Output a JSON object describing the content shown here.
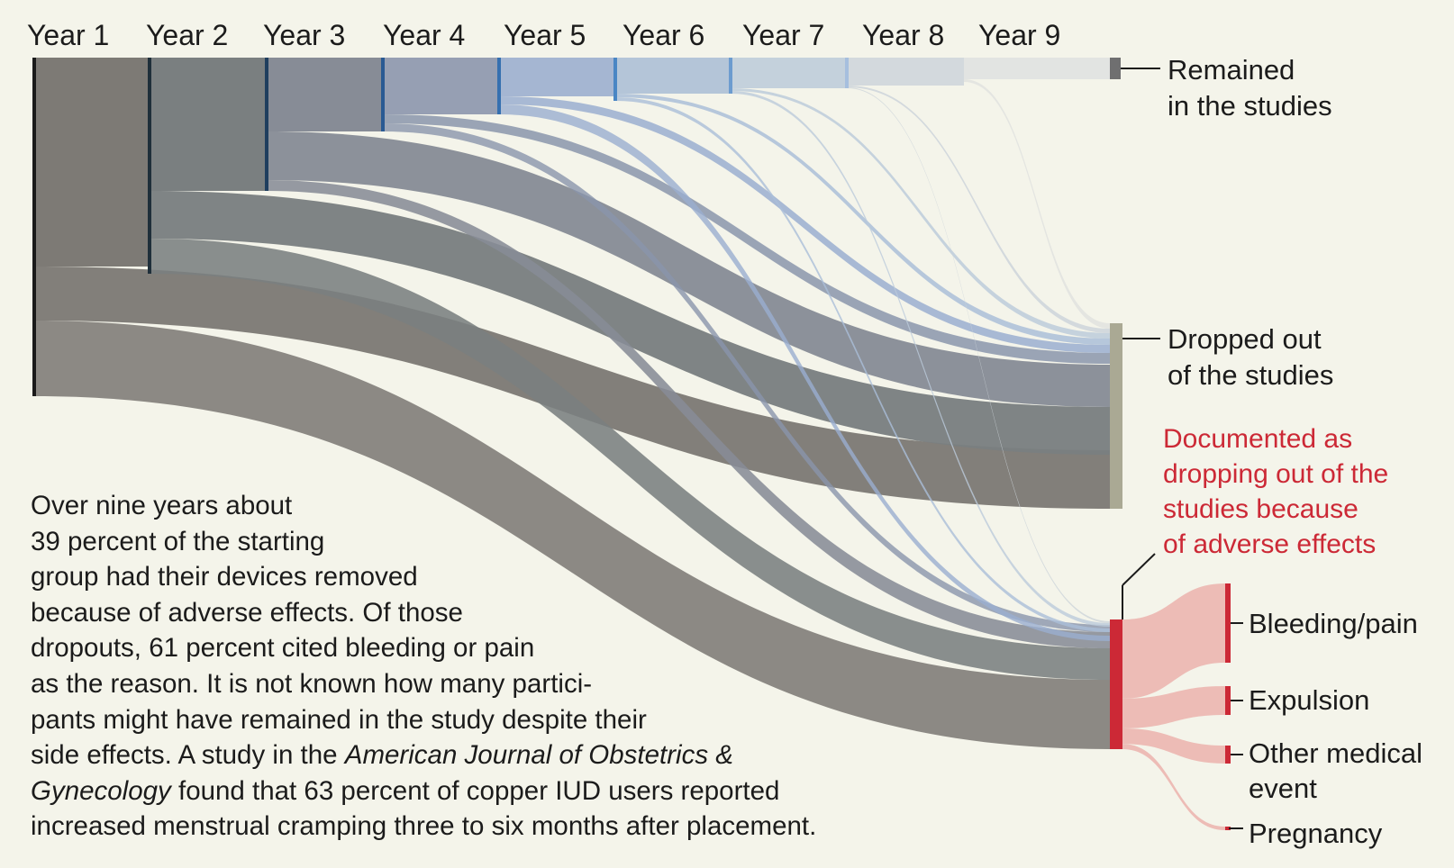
{
  "years": [
    "Year 1",
    "Year 2",
    "Year 3",
    "Year 4",
    "Year 5",
    "Year 6",
    "Year 7",
    "Year 8",
    "Year 9"
  ],
  "outcomes": {
    "remained": [
      "Remained",
      "in the studies"
    ],
    "dropped": [
      "Dropped out",
      "of the studies"
    ],
    "adverse": [
      "Documented as",
      "dropping out of the",
      "studies because",
      "of adverse effects"
    ]
  },
  "reasons": {
    "bleeding": "Bleeding/pain",
    "expulsion": "Expulsion",
    "other_medical": [
      "Other medical",
      "event"
    ],
    "pregnancy": "Pregnancy"
  },
  "caption": {
    "line1": "Over nine years about",
    "line2": "39 percent of the starting",
    "line3": "group had their devices removed",
    "line4": "because of adverse effects. Of those",
    "line5": "dropouts, 61 percent cited bleeding or pain",
    "line6": "as the reason. It is not known how many partici-",
    "line7": "pants might have remained in the study despite their",
    "line8a": "side effects. A study in the ",
    "line8_journal": "American Journal of Obstetrics &",
    "line9_journal": "Gynecology",
    "line9b": " found that 63 percent of copper IUD users reported",
    "line10": "increased menstrual cramping three to six months after placement."
  },
  "colors": {
    "background": "#f4f4ea",
    "year_fills": [
      "#7d7a75",
      "#7a7f80",
      "#878c96",
      "#969fb3",
      "#a5b6d2",
      "#b4c5d8",
      "#c4d1dc",
      "#d3d9dd",
      "#e2e4e2"
    ],
    "remained_node": "#6f6f70",
    "dropped_node": "#aaa994",
    "adverse_node": "#cc2936",
    "reason_flow": "#edbcb6",
    "red_text": "#cc2936"
  },
  "flow_values": {
    "note": "estimated participants per 1000 at start",
    "year_cohorts": [
      1000,
      640,
      400,
      215,
      170,
      115,
      85,
      80,
      60
    ],
    "remained_end": 30,
    "reasons_share": {
      "bleeding": 0.61,
      "expulsion": 0.23,
      "other_medical": 0.12,
      "pregnancy": 0.04
    }
  }
}
